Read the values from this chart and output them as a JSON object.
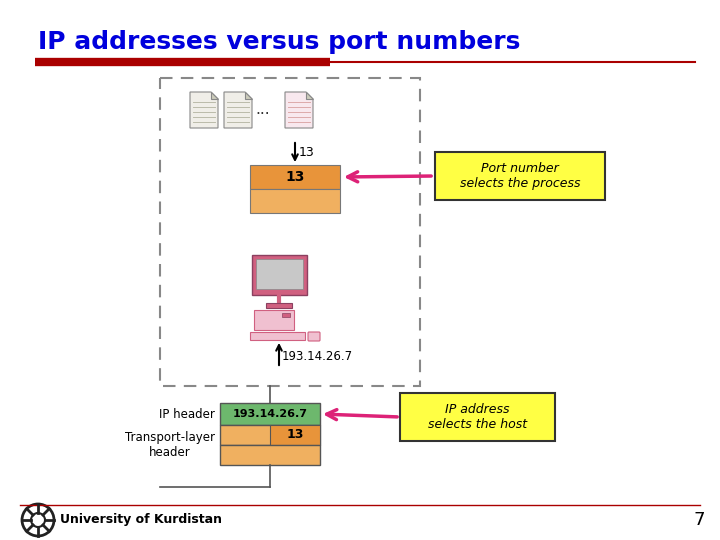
{
  "title": "IP addresses versus port numbers",
  "title_color": "#0000DD",
  "title_fontsize": 18,
  "bg_color": "#FFFFFF",
  "red_line_thick_color": "#AA0000",
  "red_line_thin_color": "#AA0000",
  "slide_number": "7",
  "footer_text": "University of Kurdistan",
  "orange_color": "#E8943A",
  "orange_light_color": "#F0B060",
  "green_color": "#6DB86D",
  "yellow_color": "#FFFF44",
  "port_label": "Port number\nselects the process",
  "ip_label": "IP address\nselects the host",
  "ip_header_label": "IP header",
  "transport_label": "Transport-layer\nheader",
  "addr_text": "193.14.26.7",
  "port_text": "13",
  "dots_text": "...",
  "arrow_color": "#DD2277",
  "dash_color": "#888888",
  "line_color": "#555555"
}
